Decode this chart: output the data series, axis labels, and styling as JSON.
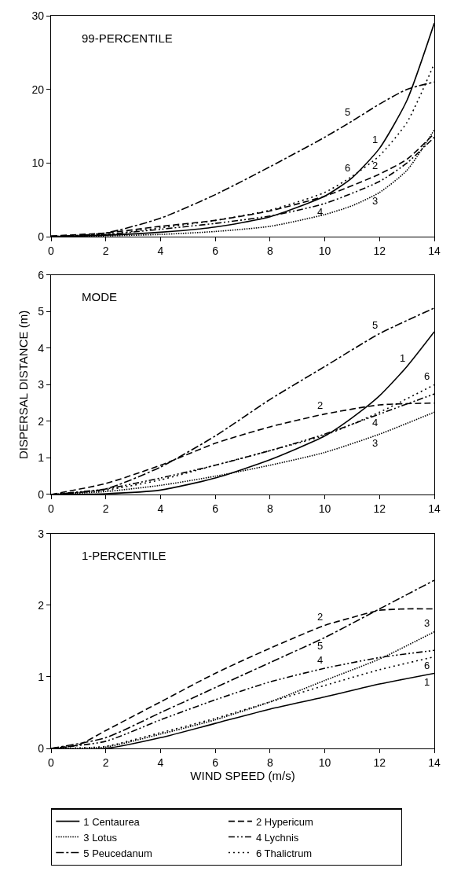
{
  "chart_data": [
    {
      "type": "line",
      "title": "99-PERCENTILE",
      "xlim": [
        0,
        14
      ],
      "xticks": [
        0,
        2,
        4,
        6,
        8,
        10,
        12,
        14
      ],
      "ylim": [
        0,
        30
      ],
      "yticks": [
        0,
        10,
        20,
        30
      ],
      "legend": false,
      "series": [
        {
          "color": "#000000",
          "line_style": "solid",
          "x": [
            0,
            2,
            4,
            6,
            8,
            10,
            11,
            12,
            13,
            14
          ],
          "values": [
            0,
            0.2,
            0.6,
            1.3,
            2.7,
            5.5,
            8,
            12,
            18.5,
            29
          ]
        },
        {
          "color": "#000000",
          "line_style": "dashed",
          "x": [
            0,
            2,
            4,
            6,
            8,
            10,
            12,
            13,
            14
          ],
          "values": [
            0.1,
            0.5,
            1.4,
            2.2,
            3.5,
            5.5,
            8.5,
            10.5,
            14
          ]
        },
        {
          "color": "#000000",
          "line_style": "dotted",
          "x": [
            0,
            2,
            4,
            6,
            8,
            10,
            11,
            12,
            13,
            14
          ],
          "values": [
            0,
            0.1,
            0.3,
            0.7,
            1.4,
            3,
            4.2,
            6,
            9,
            14.5
          ]
        },
        {
          "color": "#000000",
          "line_style": "dashdotdot",
          "x": [
            0,
            2,
            4,
            6,
            8,
            10,
            12,
            13,
            14
          ],
          "values": [
            0,
            0.3,
            1,
            1.8,
            2.8,
            4.5,
            7.5,
            10,
            13.5
          ]
        },
        {
          "color": "#000000",
          "line_style": "dashdot",
          "x": [
            0,
            2,
            4,
            6,
            8,
            10,
            11,
            12,
            13,
            14
          ],
          "values": [
            0,
            0.5,
            2.5,
            5.7,
            9.5,
            13.5,
            15.7,
            18,
            20,
            21
          ]
        },
        {
          "color": "#000000",
          "line_style": "loosely dotted",
          "x": [
            0,
            2,
            4,
            6,
            8,
            10,
            11,
            12,
            13,
            14
          ],
          "values": [
            0,
            0.3,
            1.2,
            2.2,
            3.6,
            6,
            8.2,
            11,
            15.5,
            23.5
          ]
        }
      ],
      "annotations": [
        {
          "text": "1",
          "x": 12,
          "y": 12
        },
        {
          "text": "5",
          "x": 11,
          "y": 15.7
        },
        {
          "text": "6",
          "x": 11,
          "y": 8.2
        },
        {
          "text": "2",
          "x": 12,
          "y": 8.5
        },
        {
          "text": "4",
          "x": 10,
          "y": 4.5
        },
        {
          "text": "3",
          "x": 12,
          "y": 6
        }
      ]
    },
    {
      "type": "line",
      "title": "MODE",
      "ylabel": "DISPERSAL DISTANCE (m)",
      "xlim": [
        0,
        14
      ],
      "xticks": [
        0,
        2,
        4,
        6,
        8,
        10,
        12,
        14
      ],
      "ylim": [
        0,
        6
      ],
      "yticks": [
        0,
        1,
        2,
        3,
        4,
        5,
        6
      ],
      "legend": false,
      "series": [
        {
          "color": "#000000",
          "line_style": "solid",
          "x": [
            0,
            2,
            4,
            6,
            8,
            10,
            11,
            12,
            13,
            14
          ],
          "values": [
            0,
            0.02,
            0.12,
            0.45,
            0.95,
            1.6,
            2.1,
            2.7,
            3.5,
            4.45
          ]
        },
        {
          "color": "#000000",
          "line_style": "dashed",
          "x": [
            0,
            2,
            4,
            6,
            8,
            10,
            12,
            14
          ],
          "values": [
            0,
            0.3,
            0.8,
            1.4,
            1.85,
            2.2,
            2.45,
            2.5
          ]
        },
        {
          "color": "#000000",
          "line_style": "dotted",
          "x": [
            0,
            2,
            4,
            6,
            8,
            10,
            12,
            14
          ],
          "values": [
            0,
            0.08,
            0.25,
            0.5,
            0.8,
            1.15,
            1.65,
            2.25
          ]
        },
        {
          "color": "#000000",
          "line_style": "dashdotdot",
          "x": [
            0,
            2,
            4,
            6,
            8,
            10,
            12,
            14
          ],
          "values": [
            0,
            0.15,
            0.45,
            0.8,
            1.2,
            1.65,
            2.2,
            2.75
          ]
        },
        {
          "color": "#000000",
          "line_style": "dashdot",
          "x": [
            0,
            2,
            4,
            6,
            8,
            10,
            12,
            14
          ],
          "values": [
            0,
            0.15,
            0.75,
            1.6,
            2.6,
            3.5,
            4.4,
            5.1
          ]
        },
        {
          "color": "#000000",
          "line_style": "loosely dotted",
          "x": [
            0,
            2,
            4,
            6,
            8,
            10,
            12,
            14
          ],
          "values": [
            0,
            0.12,
            0.4,
            0.8,
            1.2,
            1.62,
            2.25,
            3.0
          ]
        }
      ],
      "annotations": [
        {
          "text": "5",
          "x": 12,
          "y": 4.4
        },
        {
          "text": "1",
          "x": 13,
          "y": 3.5
        },
        {
          "text": "6",
          "x": 14,
          "y": 3.0
        },
        {
          "text": "2",
          "x": 10,
          "y": 2.2
        },
        {
          "text": "4",
          "x": 12,
          "y": 2.2
        },
        {
          "text": "3",
          "x": 12,
          "y": 1.65
        }
      ]
    },
    {
      "type": "line",
      "title": "1-PERCENTILE",
      "xlabel": "WIND SPEED (m/s)",
      "xlim": [
        0,
        14
      ],
      "xticks": [
        0,
        2,
        4,
        6,
        8,
        10,
        12,
        14
      ],
      "ylim": [
        0,
        3
      ],
      "yticks": [
        0,
        1,
        2,
        3
      ],
      "legend": "bottom",
      "series": [
        {
          "name": "1 Centaurea",
          "color": "#000000",
          "line_style": "solid",
          "x": [
            0,
            2,
            4,
            6,
            8,
            10,
            12,
            14
          ],
          "values": [
            0,
            0,
            0.15,
            0.35,
            0.55,
            0.72,
            0.9,
            1.05
          ]
        },
        {
          "name": "2 Hypericum",
          "color": "#000000",
          "line_style": "dashed",
          "x": [
            0,
            1,
            2,
            4,
            6,
            8,
            10,
            11,
            12,
            13,
            14
          ],
          "values": [
            0,
            0.05,
            0.25,
            0.65,
            1.05,
            1.4,
            1.72,
            1.83,
            1.93,
            1.95,
            1.95
          ]
        },
        {
          "name": "3 Lotus",
          "color": "#000000",
          "line_style": "dotted",
          "x": [
            0,
            2,
            4,
            6,
            8,
            10,
            12,
            14
          ],
          "values": [
            0,
            0.02,
            0.2,
            0.4,
            0.65,
            0.95,
            1.25,
            1.63
          ]
        },
        {
          "name": "4 Lychnis",
          "color": "#000000",
          "line_style": "dashdotdot",
          "x": [
            0,
            2,
            4,
            6,
            8,
            10,
            12,
            14
          ],
          "values": [
            0,
            0.1,
            0.4,
            0.68,
            0.93,
            1.12,
            1.27,
            1.37
          ]
        },
        {
          "name": "5 Peucedanum",
          "color": "#000000",
          "line_style": "dashdot",
          "x": [
            0,
            2,
            4,
            6,
            8,
            10,
            12,
            14
          ],
          "values": [
            0,
            0.15,
            0.5,
            0.85,
            1.2,
            1.55,
            1.95,
            2.35
          ]
        },
        {
          "name": "6 Thalictrum",
          "color": "#000000",
          "line_style": "loosely dotted",
          "x": [
            0,
            2,
            4,
            6,
            8,
            10,
            12,
            14
          ],
          "values": [
            0,
            0.03,
            0.22,
            0.42,
            0.65,
            0.88,
            1.1,
            1.28
          ]
        }
      ],
      "annotations": [
        {
          "text": "2",
          "x": 10,
          "y": 1.72
        },
        {
          "text": "5",
          "x": 10,
          "y": 1.55
        },
        {
          "text": "4",
          "x": 10,
          "y": 1.12
        },
        {
          "text": "3",
          "x": 14,
          "y": 1.63
        },
        {
          "text": "6",
          "x": 14,
          "y": 1.28
        },
        {
          "text": "1",
          "x": 14,
          "y": 1.05
        }
      ]
    }
  ]
}
